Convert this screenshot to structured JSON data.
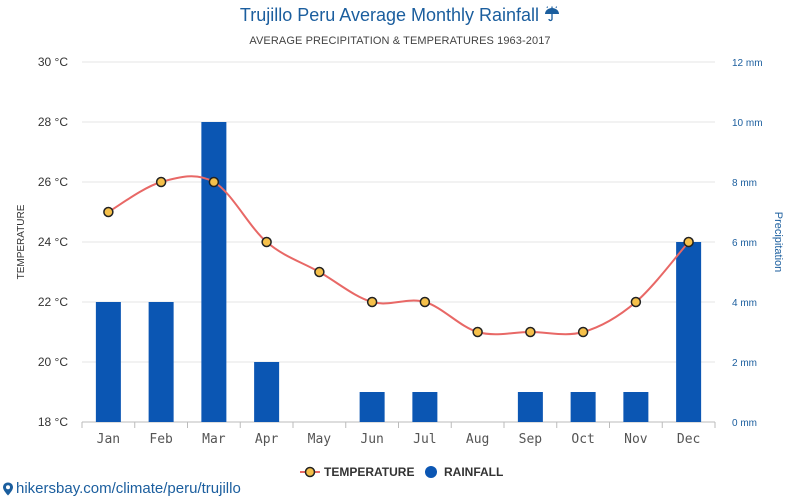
{
  "header": {
    "title": "Trujillo Peru Average Monthly Rainfall",
    "title_icon": "umbrella-rain-icon",
    "subtitle": "AVERAGE PRECIPITATION & TEMPERATURES 1963-2017"
  },
  "chart_data": {
    "type": "bar",
    "categories": [
      "Jan",
      "Feb",
      "Mar",
      "Apr",
      "May",
      "Jun",
      "Jul",
      "Aug",
      "Sep",
      "Oct",
      "Nov",
      "Dec"
    ],
    "series": [
      {
        "name": "RAINFALL",
        "type": "bar",
        "axis": "right",
        "unit": "mm",
        "color": "#0b56b3",
        "values": [
          4,
          4,
          10,
          2,
          0,
          1,
          1,
          0,
          1,
          1,
          1,
          6
        ]
      },
      {
        "name": "TEMPERATURE",
        "type": "line",
        "axis": "left",
        "unit": "°C",
        "color": "#e86866",
        "marker_fill": "#f5c04a",
        "values": [
          25,
          26,
          26,
          24,
          23,
          22,
          22,
          21,
          21,
          21,
          22,
          24
        ]
      }
    ],
    "y_left": {
      "label": "TEMPERATURE",
      "ylim": [
        18,
        30
      ],
      "ticks": [
        "18 °C",
        "20 °C",
        "22 °C",
        "24 °C",
        "26 °C",
        "28 °C",
        "30 °C"
      ]
    },
    "y_right": {
      "label": "Precipitation",
      "ylim": [
        0,
        12
      ],
      "ticks": [
        "0 mm",
        "2 mm",
        "4 mm",
        "6 mm",
        "8 mm",
        "10 mm",
        "12 mm"
      ]
    },
    "grid": true,
    "legend_position": "bottom-center"
  },
  "footer": {
    "source": "hikersbay.com/climate/peru/trujillo",
    "source_icon": "map-pin-icon"
  }
}
